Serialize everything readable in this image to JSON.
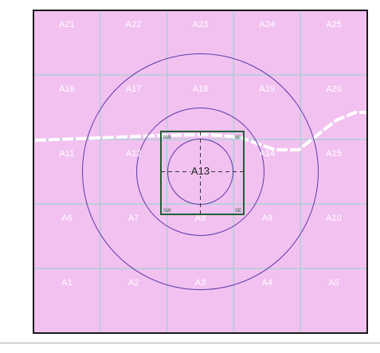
{
  "colors": {
    "background": "#f2c1f0",
    "frame": "#1a1a1a",
    "grid": "#9fd3cf",
    "ring": "#5b3aa8",
    "square": "#1f5f33",
    "crosshair": "#333333",
    "road": "#ffffff",
    "cell_label": "#ffffff"
  },
  "grid": {
    "rows": [
      [
        "A21",
        "A22",
        "A23",
        "A24",
        "A25"
      ],
      [
        "A16",
        "A17",
        "A18",
        "A19",
        "A20"
      ],
      [
        "A11",
        "A12",
        "A13",
        "A14",
        "A15"
      ],
      [
        "A6",
        "A7",
        "A8",
        "A9",
        "A10"
      ],
      [
        "A1",
        "A2",
        "A3",
        "A4",
        "A5"
      ]
    ]
  },
  "center_cell": "A13",
  "corners": {
    "nw": "NW",
    "ne": "NE",
    "sw": "SW",
    "se": "SE"
  },
  "rings": 3,
  "features": {
    "road": "white-dashed-road",
    "markers": "concentric-rings"
  }
}
